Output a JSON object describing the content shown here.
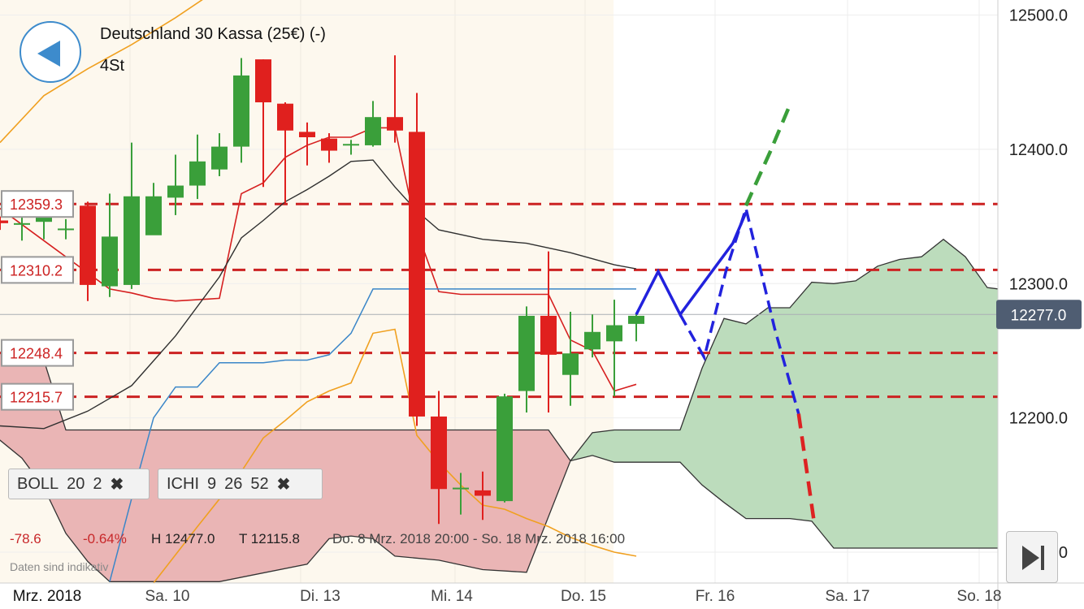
{
  "header": {
    "title": "Deutschland 30 Kassa (25€) (-)",
    "timeframe": "4St",
    "back_icon": "back-arrow-icon"
  },
  "indicators": [
    {
      "name": "BOLL",
      "p1": "20",
      "p2": "2",
      "close": "✖"
    },
    {
      "name": "ICHI",
      "p1": "9",
      "p2": "26",
      "p3": "52",
      "close": "✖"
    }
  ],
  "stats": {
    "change": "-78.6",
    "change_pct": "-0.64%",
    "high": "H 12477.0",
    "low": "T 12115.8",
    "range": "Do. 8 Mrz. 2018 20:00 - So. 18 Mrz. 2018 16:00"
  },
  "disclaimer": "Daten sind indikativ",
  "end_button_icon": "skip-to-end-icon",
  "colors": {
    "up": "#3a9f3a",
    "down": "#e0201e",
    "level_line": "#cc2222",
    "forecast": "#2222dd",
    "forecast_up": "#3a9f3a",
    "kumo_bear": "#eab5b5",
    "kumo_bull": "#bcdcbc",
    "price_label_bg": "#4f5d72"
  },
  "chart_data": {
    "type": "candlestick",
    "y_axis": {
      "min": 12077,
      "max": 12510,
      "ticks": [
        "12500.0",
        "12400.0",
        "12300.0",
        "12200.0",
        "12100.0"
      ]
    },
    "x_axis": {
      "labels": [
        "Mrz. 2018",
        "Sa. 10",
        "Di. 13",
        "Mi. 14",
        "Do. 15",
        "Fr. 16",
        "Sa. 17",
        "So. 18"
      ]
    },
    "current_price": {
      "value": 12277.0,
      "label": "12277.0"
    },
    "level_lines": [
      {
        "value": 12359.3,
        "label": "12359.3"
      },
      {
        "value": 12310.2,
        "label": "12310.2"
      },
      {
        "value": 12248.4,
        "label": "12248.4"
      },
      {
        "value": 12215.7,
        "label": "12215.7"
      }
    ],
    "candles": [
      [
        12347,
        12345,
        12350,
        12340
      ],
      [
        12345,
        12345,
        12365,
        12332
      ],
      [
        12346,
        12350,
        12352,
        12333
      ],
      [
        12341,
        12341,
        12348,
        12333
      ],
      [
        12358,
        12299,
        12361,
        12287
      ],
      [
        12298,
        12335,
        12367,
        12290
      ],
      [
        12299,
        12365,
        12405,
        12296
      ],
      [
        12336,
        12365,
        12375,
        12359
      ],
      [
        12364,
        12373,
        12396,
        12351
      ],
      [
        12373,
        12391,
        12411,
        12363
      ],
      [
        12385,
        12402,
        12412,
        12380
      ],
      [
        12402,
        12455,
        12468,
        12390
      ],
      [
        12467,
        12435,
        12467,
        12372
      ],
      [
        12434,
        12414,
        12435,
        12360
      ],
      [
        12413,
        12409,
        12420,
        12388
      ],
      [
        12408,
        12399,
        12412,
        12390
      ],
      [
        12403,
        12404,
        12407,
        12396
      ],
      [
        12403,
        12424,
        12436,
        12402
      ],
      [
        12424,
        12414,
        12470,
        12405
      ],
      [
        12413,
        12201,
        12442,
        12194
      ],
      [
        12201,
        12147,
        12220,
        12121
      ],
      [
        12148,
        12148,
        12159,
        12128
      ],
      [
        12146,
        12142,
        12160,
        12124
      ],
      [
        12138,
        12216,
        12218,
        12137
      ],
      [
        12220,
        12276,
        12283,
        12204
      ],
      [
        12276,
        12247,
        12324,
        12204
      ],
      [
        12232,
        12248,
        12279,
        12209
      ],
      [
        12251,
        12264,
        12277,
        12245
      ],
      [
        12257,
        12269,
        12288,
        12216
      ],
      [
        12270,
        12276,
        12278,
        12257
      ]
    ],
    "series": [
      {
        "name": "Tenkan",
        "values": [
          [
            0,
            12356
          ],
          [
            5,
            12296
          ],
          [
            6,
            12293
          ],
          [
            7,
            12289
          ],
          [
            8,
            12287
          ],
          [
            9,
            12288
          ],
          [
            10,
            12289
          ],
          [
            11,
            12367
          ],
          [
            12,
            12375
          ],
          [
            13,
            12394
          ],
          [
            14,
            12403
          ],
          [
            15,
            12409
          ],
          [
            16,
            12409
          ],
          [
            17,
            12416
          ],
          [
            18,
            12416
          ],
          [
            19,
            12339
          ],
          [
            20,
            12294
          ],
          [
            21,
            12292
          ],
          [
            22,
            12292
          ],
          [
            23,
            12292
          ],
          [
            24,
            12292
          ],
          [
            25,
            12292
          ],
          [
            26,
            12258
          ],
          [
            27,
            12250
          ],
          [
            28,
            12220
          ],
          [
            29,
            12225
          ]
        ]
      },
      {
        "name": "Kijun",
        "values": [
          [
            0,
            12194
          ],
          [
            2,
            12192
          ],
          [
            4,
            12205
          ],
          [
            6,
            12224
          ],
          [
            8,
            12261
          ],
          [
            10,
            12305
          ],
          [
            11,
            12334
          ],
          [
            12,
            12347
          ],
          [
            13,
            12361
          ],
          [
            14,
            12370
          ],
          [
            15,
            12380
          ],
          [
            16,
            12391
          ],
          [
            17,
            12392
          ],
          [
            18,
            12372
          ],
          [
            19,
            12354
          ],
          [
            20,
            12340
          ],
          [
            22,
            12333
          ],
          [
            24,
            12330
          ],
          [
            26,
            12323
          ],
          [
            28,
            12314
          ],
          [
            29,
            12311
          ]
        ]
      },
      {
        "name": "Chikou",
        "values": [
          [
            5,
            12078
          ],
          [
            6,
            12140
          ],
          [
            7,
            12200
          ],
          [
            8,
            12223
          ],
          [
            9,
            12223
          ],
          [
            10,
            12241
          ],
          [
            11,
            12241
          ],
          [
            12,
            12241
          ],
          [
            13,
            12243
          ],
          [
            14,
            12243
          ],
          [
            15,
            12247
          ],
          [
            16,
            12263
          ],
          [
            17,
            12296
          ],
          [
            18,
            12296
          ],
          [
            19,
            12296
          ],
          [
            20,
            12296
          ],
          [
            21,
            12296
          ],
          [
            22,
            12296
          ],
          [
            24,
            12296
          ],
          [
            26,
            12296
          ],
          [
            28,
            12296
          ],
          [
            29,
            12296
          ]
        ]
      },
      {
        "name": "BB_upper",
        "values": [
          [
            0,
            12405
          ],
          [
            2,
            12440
          ],
          [
            4,
            12460
          ],
          [
            6,
            12478
          ],
          [
            8,
            12498
          ],
          [
            10,
            12520
          ],
          [
            12,
            12535
          ],
          [
            13,
            12540
          ],
          [
            14,
            12545
          ],
          [
            16,
            12534
          ],
          [
            18,
            12532
          ],
          [
            19,
            12538
          ]
        ]
      },
      {
        "name": "BB_lower",
        "values": [
          [
            7,
            12077
          ],
          [
            9,
            12119
          ],
          [
            11,
            12160
          ],
          [
            12,
            12185
          ],
          [
            13,
            12198
          ],
          [
            14,
            12212
          ],
          [
            15,
            12220
          ],
          [
            16,
            12226
          ],
          [
            17,
            12263
          ],
          [
            18,
            12266
          ],
          [
            19,
            12187
          ],
          [
            20,
            12167
          ],
          [
            21,
            12150
          ],
          [
            22,
            12135
          ],
          [
            23,
            12132
          ],
          [
            24,
            12125
          ],
          [
            25,
            12119
          ],
          [
            26,
            12111
          ],
          [
            27,
            12105
          ],
          [
            28,
            12100
          ],
          [
            29,
            12097
          ]
        ]
      }
    ],
    "kumo": {
      "senkou_a": [
        [
          -0.5,
          12248
        ],
        [
          1,
          12249
        ],
        [
          2,
          12243
        ],
        [
          3,
          12191
        ],
        [
          4,
          12191
        ],
        [
          10,
          12191
        ],
        [
          14,
          12191
        ],
        [
          15,
          12191
        ],
        [
          20,
          12191
        ],
        [
          25,
          12191
        ],
        [
          26,
          12168
        ],
        [
          27,
          12189
        ],
        [
          28,
          12191
        ],
        [
          30,
          12191
        ],
        [
          31,
          12191
        ],
        [
          32,
          12237
        ],
        [
          33,
          12274
        ],
        [
          34,
          12270
        ],
        [
          35,
          12282
        ],
        [
          36,
          12282
        ],
        [
          37,
          12301
        ],
        [
          38,
          12300
        ],
        [
          39,
          12302
        ],
        [
          40,
          12313
        ],
        [
          41,
          12318
        ],
        [
          42,
          12320
        ],
        [
          43,
          12333
        ],
        [
          44,
          12320
        ],
        [
          45,
          12297
        ],
        [
          46,
          12295
        ],
        [
          47,
          12292
        ]
      ],
      "senkou_b": [
        [
          -0.5,
          12190
        ],
        [
          1,
          12170
        ],
        [
          2,
          12148
        ],
        [
          3,
          12114
        ],
        [
          4,
          12093
        ],
        [
          5,
          12078
        ],
        [
          10,
          12078
        ],
        [
          14,
          12091
        ],
        [
          15,
          12110
        ],
        [
          16,
          12112
        ],
        [
          17,
          12110
        ],
        [
          18,
          12097
        ],
        [
          20,
          12094
        ],
        [
          22,
          12087
        ],
        [
          24,
          12085
        ],
        [
          26,
          12168
        ],
        [
          27,
          12172
        ],
        [
          28,
          12167
        ],
        [
          30,
          12167
        ],
        [
          31,
          12167
        ],
        [
          32,
          12150
        ],
        [
          33,
          12137
        ],
        [
          34,
          12125
        ],
        [
          35,
          12125
        ],
        [
          36,
          12125
        ],
        [
          37,
          12123
        ],
        [
          38,
          12103
        ],
        [
          39,
          12103
        ],
        [
          40,
          12103
        ],
        [
          44,
          12103
        ],
        [
          47,
          12103
        ]
      ]
    },
    "forecast": [
      {
        "color": "blue",
        "style": "solid",
        "points": [
          [
            29,
            12277
          ],
          [
            30,
            12309
          ],
          [
            31,
            12277
          ],
          [
            33.4,
            12330
          ],
          [
            34.0,
            12353
          ]
        ]
      },
      {
        "color": "blue",
        "style": "dashed",
        "points": [
          [
            31,
            12277
          ],
          [
            32.1,
            12245
          ],
          [
            33.1,
            12310
          ],
          [
            34.0,
            12356
          ],
          [
            35.3,
            12267
          ],
          [
            36.4,
            12203
          ]
        ]
      },
      {
        "color": "red",
        "style": "dashed",
        "points": [
          [
            36.4,
            12203
          ],
          [
            37.1,
            12123
          ]
        ]
      },
      {
        "color": "green",
        "style": "dashed",
        "points": [
          [
            34.0,
            12358
          ],
          [
            35.1,
            12398
          ],
          [
            36.0,
            12433
          ]
        ]
      }
    ]
  }
}
